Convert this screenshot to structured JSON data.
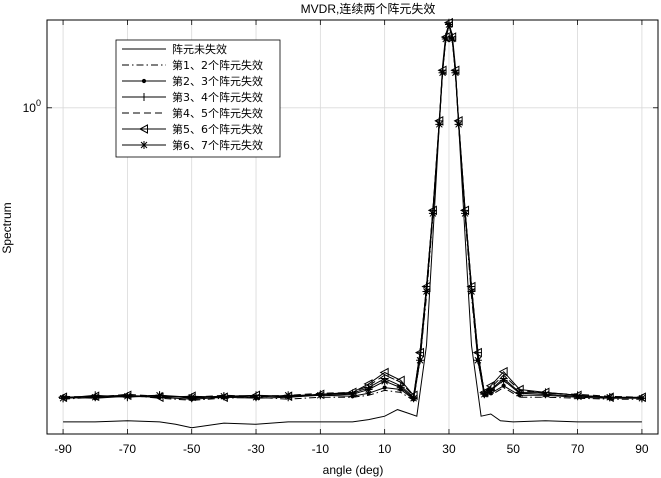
{
  "chart_data": {
    "type": "line",
    "title": "MVDR,连续两个阵元失效",
    "xlabel": "angle (deg)",
    "ylabel": "Spectrum",
    "xlim": [
      -95,
      95
    ],
    "ylim": [
      0.125,
      1.75
    ],
    "yscale": "log",
    "x_ticks": [
      -90,
      -70,
      -50,
      -30,
      -10,
      10,
      30,
      50,
      70,
      90
    ],
    "x_tick_labels": [
      "-90",
      "-70",
      "-50",
      "-30",
      "-10",
      "10",
      "30",
      "50",
      "70",
      "90"
    ],
    "y_ticks": [
      1
    ],
    "y_tick_base": "10",
    "y_tick_exp": "0",
    "grid": true,
    "legend_position": "top-left",
    "series": [
      {
        "name": "阵元未失效",
        "style": "solid",
        "marker": "none",
        "x": [
          -90,
          -80,
          -70,
          -60,
          -55,
          -50,
          -40,
          -30,
          -20,
          -10,
          0,
          5,
          10,
          14,
          17,
          20,
          23,
          25,
          27,
          28,
          29,
          30,
          31,
          32,
          33,
          35,
          37,
          40,
          43,
          46,
          50,
          60,
          70,
          80,
          90
        ],
        "y": [
          0.135,
          0.135,
          0.136,
          0.135,
          0.133,
          0.13,
          0.134,
          0.133,
          0.135,
          0.135,
          0.135,
          0.137,
          0.14,
          0.146,
          0.143,
          0.14,
          0.22,
          0.44,
          0.9,
          1.3,
          1.6,
          1.7,
          1.6,
          1.3,
          0.9,
          0.44,
          0.22,
          0.14,
          0.142,
          0.136,
          0.135,
          0.136,
          0.135,
          0.135,
          0.135
        ]
      },
      {
        "name": "第1、2个阵元失效",
        "style": "dashdot",
        "marker": "none",
        "x": [
          -90,
          -80,
          -70,
          -60,
          -50,
          -40,
          -30,
          -20,
          -10,
          0,
          5,
          10,
          15,
          19,
          21,
          23,
          25,
          27,
          28,
          29,
          30,
          31,
          32,
          33,
          35,
          37,
          39,
          41,
          43,
          47,
          52,
          60,
          70,
          80,
          90
        ],
        "y": [
          0.156,
          0.158,
          0.16,
          0.157,
          0.155,
          0.157,
          0.158,
          0.156,
          0.158,
          0.158,
          0.16,
          0.165,
          0.163,
          0.155,
          0.2,
          0.3,
          0.5,
          0.9,
          1.25,
          1.55,
          1.7,
          1.55,
          1.25,
          0.9,
          0.5,
          0.3,
          0.2,
          0.16,
          0.16,
          0.168,
          0.158,
          0.158,
          0.157,
          0.156,
          0.156
        ]
      },
      {
        "name": "第2、3个阵元失效",
        "style": "solid",
        "marker": "dot",
        "x": [
          -90,
          -80,
          -70,
          -60,
          -50,
          -40,
          -30,
          -20,
          -10,
          0,
          5,
          10,
          15,
          19,
          21,
          23,
          25,
          27,
          28,
          29,
          30,
          31,
          32,
          33,
          35,
          37,
          39,
          41,
          43,
          47,
          52,
          60,
          70,
          80,
          90
        ],
        "y": [
          0.158,
          0.157,
          0.159,
          0.158,
          0.156,
          0.158,
          0.157,
          0.158,
          0.16,
          0.159,
          0.162,
          0.168,
          0.166,
          0.156,
          0.2,
          0.31,
          0.51,
          0.9,
          1.25,
          1.55,
          1.7,
          1.55,
          1.25,
          0.9,
          0.51,
          0.31,
          0.2,
          0.16,
          0.162,
          0.17,
          0.16,
          0.16,
          0.158,
          0.157,
          0.157
        ]
      },
      {
        "name": "第3、4个阵元失效",
        "style": "solid",
        "marker": "plus",
        "x": [
          -90,
          -80,
          -70,
          -60,
          -50,
          -40,
          -30,
          -20,
          -10,
          0,
          5,
          10,
          15,
          19,
          21,
          23,
          25,
          27,
          28,
          29,
          30,
          31,
          32,
          33,
          35,
          37,
          39,
          41,
          43,
          47,
          52,
          60,
          70,
          80,
          90
        ],
        "y": [
          0.157,
          0.16,
          0.158,
          0.16,
          0.157,
          0.159,
          0.16,
          0.158,
          0.161,
          0.162,
          0.168,
          0.178,
          0.17,
          0.158,
          0.21,
          0.32,
          0.52,
          0.92,
          1.27,
          1.57,
          1.72,
          1.57,
          1.27,
          0.92,
          0.52,
          0.32,
          0.21,
          0.162,
          0.166,
          0.178,
          0.163,
          0.163,
          0.16,
          0.158,
          0.157
        ]
      },
      {
        "name": "第4、5个阵元失效",
        "style": "dashed",
        "marker": "none",
        "x": [
          -90,
          -80,
          -70,
          -60,
          -50,
          -40,
          -30,
          -20,
          -10,
          0,
          5,
          10,
          15,
          19,
          21,
          23,
          25,
          27,
          28,
          29,
          30,
          31,
          32,
          33,
          35,
          37,
          39,
          41,
          43,
          47,
          52,
          60,
          70,
          80,
          90
        ],
        "y": [
          0.159,
          0.158,
          0.161,
          0.159,
          0.158,
          0.16,
          0.159,
          0.16,
          0.162,
          0.163,
          0.17,
          0.182,
          0.174,
          0.159,
          0.21,
          0.32,
          0.52,
          0.92,
          1.27,
          1.57,
          1.72,
          1.57,
          1.27,
          0.92,
          0.52,
          0.32,
          0.21,
          0.163,
          0.168,
          0.182,
          0.165,
          0.162,
          0.161,
          0.159,
          0.158
        ]
      },
      {
        "name": "第5、6个阵元失效",
        "style": "solid",
        "marker": "triangle-left",
        "x": [
          -90,
          -80,
          -70,
          -60,
          -50,
          -40,
          -30,
          -20,
          -10,
          0,
          5,
          10,
          15,
          19,
          21,
          23,
          25,
          27,
          28,
          29,
          30,
          31,
          32,
          33,
          35,
          37,
          39,
          41,
          43,
          47,
          52,
          60,
          70,
          80,
          90
        ],
        "y": [
          0.158,
          0.159,
          0.16,
          0.158,
          0.159,
          0.158,
          0.16,
          0.159,
          0.161,
          0.163,
          0.172,
          0.185,
          0.176,
          0.16,
          0.21,
          0.32,
          0.52,
          0.92,
          1.27,
          1.57,
          1.72,
          1.57,
          1.27,
          0.92,
          0.52,
          0.32,
          0.21,
          0.163,
          0.17,
          0.186,
          0.166,
          0.163,
          0.16,
          0.158,
          0.158
        ]
      },
      {
        "name": "第6、7个阵元失效",
        "style": "solid",
        "marker": "star",
        "x": [
          -90,
          -80,
          -70,
          -60,
          -50,
          -40,
          -30,
          -20,
          -10,
          0,
          5,
          10,
          15,
          19,
          21,
          23,
          25,
          27,
          28,
          29,
          30,
          31,
          32,
          33,
          35,
          37,
          39,
          41,
          43,
          47,
          52,
          60,
          70,
          80,
          90
        ],
        "y": [
          0.157,
          0.158,
          0.159,
          0.16,
          0.158,
          0.159,
          0.158,
          0.16,
          0.16,
          0.161,
          0.166,
          0.175,
          0.168,
          0.157,
          0.2,
          0.31,
          0.51,
          0.9,
          1.25,
          1.55,
          1.7,
          1.55,
          1.25,
          0.9,
          0.51,
          0.31,
          0.2,
          0.161,
          0.165,
          0.176,
          0.162,
          0.161,
          0.159,
          0.158,
          0.157
        ]
      }
    ]
  }
}
